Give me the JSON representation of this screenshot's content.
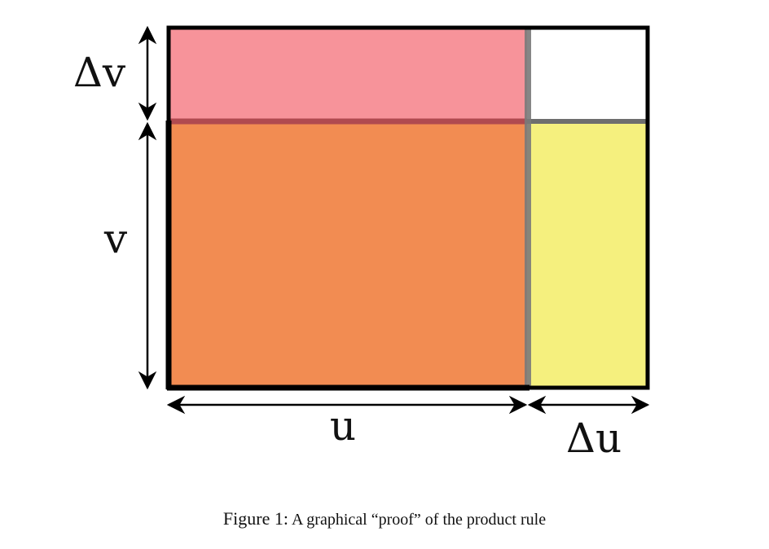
{
  "diagram": {
    "labels": {
      "delta_v": "Δv",
      "v": "v",
      "u": "u",
      "delta_u": "Δu"
    },
    "colors": {
      "top_strip": "#f7939a",
      "main_rect": "#f28c52",
      "right_strip": "#f5f07e",
      "corner": "#ffffff",
      "outline": "#000000",
      "divider": "#6e6e6e",
      "top_divider": "#b04a50"
    }
  },
  "caption": {
    "label": "Figure 1:",
    "text": "A graphical “proof” of the product rule"
  }
}
